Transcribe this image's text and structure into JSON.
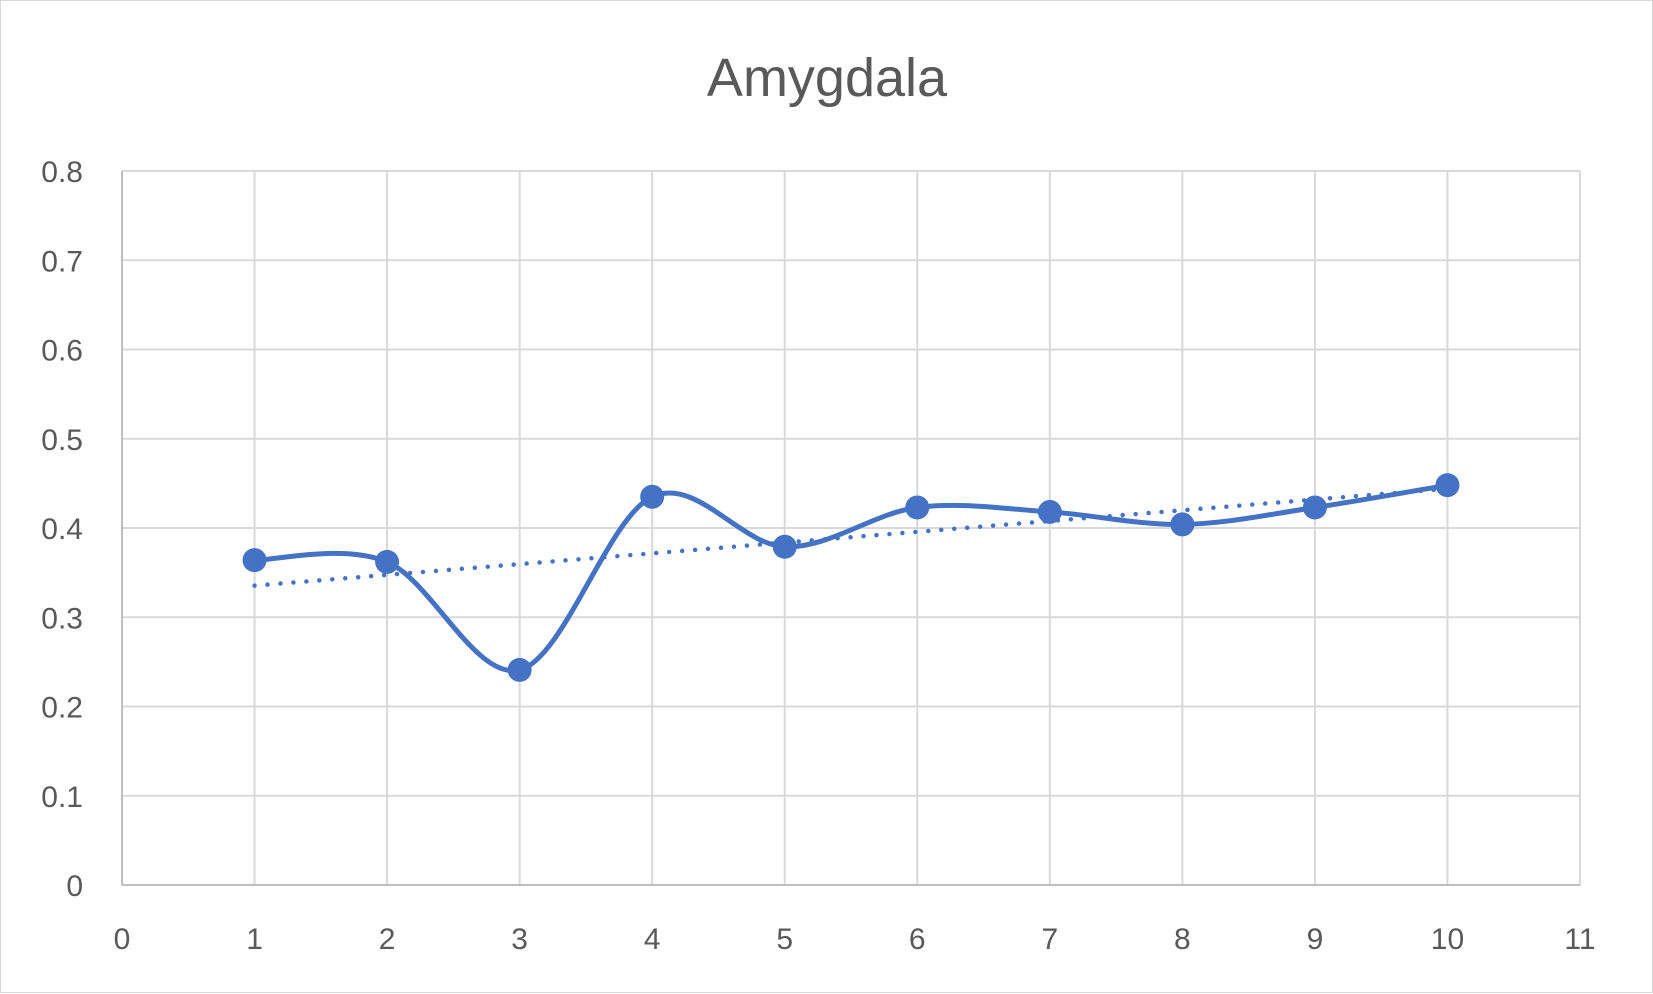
{
  "chart_data": {
    "type": "scatter",
    "title": "Amygdala",
    "xlabel": "",
    "ylabel": "",
    "xlim": [
      0,
      11
    ],
    "ylim": [
      0,
      0.8
    ],
    "x_ticks": [
      "0",
      "1",
      "2",
      "3",
      "4",
      "5",
      "6",
      "7",
      "8",
      "9",
      "10",
      "11"
    ],
    "y_ticks": [
      "0",
      "0.1",
      "0.2",
      "0.3",
      "0.4",
      "0.5",
      "0.6",
      "0.7",
      "0.8"
    ],
    "grid": true,
    "legend": "none",
    "series": [
      {
        "x": [
          1,
          2,
          3,
          4,
          5,
          6,
          7,
          8,
          9,
          10
        ],
        "values": [
          0.364,
          0.362,
          0.241,
          0.435,
          0.379,
          0.423,
          0.418,
          0.404,
          0.423,
          0.448
        ],
        "line": "smooth",
        "markers": true,
        "color": "#4472c4"
      }
    ],
    "trendline": {
      "kind": "linear",
      "style": "dotted",
      "color": "#4472c4",
      "x_range": [
        1,
        10
      ]
    }
  }
}
